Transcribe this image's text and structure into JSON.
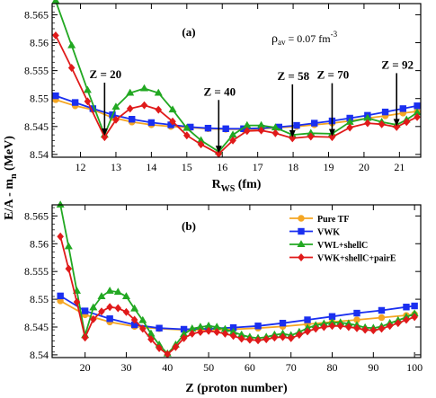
{
  "ylabel": "E/A - m",
  "ylabel_sub": "n",
  "ylabel_unit": "(MeV)",
  "panel_a": {
    "label": "(a)",
    "rho_main": "ρ",
    "rho_sub": "av",
    "rho_value": "= 0.07 fm",
    "rho_sup": "-3",
    "xlabel_main": "R",
    "xlabel_sub": "WS",
    "xlabel_unit": "(fm)"
  },
  "panel_b": {
    "label": "(b)",
    "xlabel": "Z (proton number)"
  },
  "chart_data": [
    {
      "type": "line",
      "panel": "(a)",
      "xlabel": "R_WS (fm)",
      "ylabel": "E/A - m_n (MeV)",
      "xlim": [
        11.2,
        21.6
      ],
      "ylim": [
        8.5395,
        8.567
      ],
      "xticks": [
        "12",
        "13",
        "14",
        "15",
        "16",
        "17",
        "18",
        "19",
        "20",
        "21"
      ],
      "yticks": [
        "8.54",
        "8.545",
        "8.55",
        "8.555",
        "8.56",
        "8.565"
      ],
      "annotations": [
        {
          "text": "Z = 20",
          "x": 12.68,
          "y": 8.5432
        },
        {
          "text": "Z = 40",
          "x": 15.9,
          "y": 8.5401
        },
        {
          "text": "Z = 58",
          "x": 17.98,
          "y": 8.5429
        },
        {
          "text": "Z = 70",
          "x": 19.1,
          "y": 8.5431
        },
        {
          "text": "Z = 92",
          "x": 20.92,
          "y": 8.5449
        }
      ],
      "series": [
        {
          "name": "Pure TF",
          "color": "#f5a623",
          "marker": "circle",
          "x": [
            11.3,
            11.85,
            12.35,
            12.9,
            13.45,
            14.0,
            14.55,
            15.1,
            15.6,
            16.1,
            16.6,
            17.1,
            17.6,
            18.1,
            18.6,
            19.1,
            19.6,
            20.1,
            20.6,
            21.1,
            21.5
          ],
          "y": [
            8.5498,
            8.5487,
            8.548,
            8.5466,
            8.5458,
            8.5453,
            8.545,
            8.5448,
            8.5446,
            8.5445,
            8.5445,
            8.5446,
            8.5448,
            8.545,
            8.5453,
            8.5456,
            8.546,
            8.5465,
            8.5469,
            8.5474,
            8.5477
          ]
        },
        {
          "name": "VWK",
          "color": "#1a2ff0",
          "marker": "square",
          "x": [
            11.3,
            11.85,
            12.35,
            12.9,
            13.45,
            14.0,
            14.55,
            15.1,
            15.6,
            16.1,
            16.6,
            17.1,
            17.6,
            18.1,
            18.6,
            19.1,
            19.6,
            20.1,
            20.6,
            21.1,
            21.5
          ],
          "y": [
            8.5505,
            8.5493,
            8.5482,
            8.5471,
            8.5463,
            8.5457,
            8.5453,
            8.5449,
            8.5447,
            8.5446,
            8.5446,
            8.5447,
            8.5449,
            8.5452,
            8.5456,
            8.546,
            8.5465,
            8.547,
            8.5476,
            8.5482,
            8.5487
          ]
        },
        {
          "name": "VWL+shellC",
          "color": "#22a822",
          "marker": "triangle",
          "x": [
            11.3,
            11.75,
            12.2,
            12.68,
            13.0,
            13.4,
            13.8,
            14.2,
            14.6,
            15.0,
            15.4,
            15.9,
            16.3,
            16.7,
            17.1,
            17.5,
            17.98,
            18.5,
            19.1,
            19.6,
            20.1,
            20.5,
            20.92,
            21.2,
            21.5
          ],
          "y": [
            8.5675,
            8.5595,
            8.5515,
            8.5435,
            8.5485,
            8.551,
            8.5518,
            8.551,
            8.548,
            8.5447,
            8.5425,
            8.5405,
            8.5435,
            8.5452,
            8.5452,
            8.5448,
            8.5435,
            8.5438,
            8.5437,
            8.5458,
            8.5465,
            8.5458,
            8.5453,
            8.5462,
            8.5475
          ]
        },
        {
          "name": "VWK+shellC+pairE",
          "color": "#e01a1a",
          "marker": "diamond",
          "x": [
            11.3,
            11.75,
            12.2,
            12.68,
            13.0,
            13.4,
            13.8,
            14.2,
            14.6,
            15.0,
            15.4,
            15.9,
            16.3,
            16.7,
            17.1,
            17.5,
            17.98,
            18.5,
            19.1,
            19.6,
            20.1,
            20.5,
            20.92,
            21.2,
            21.5
          ],
          "y": [
            8.5613,
            8.5555,
            8.5495,
            8.5431,
            8.5462,
            8.5482,
            8.5488,
            8.548,
            8.5459,
            8.5434,
            8.5418,
            8.5401,
            8.5425,
            8.5442,
            8.5443,
            8.5438,
            8.5429,
            8.5432,
            8.5431,
            8.5448,
            8.5456,
            8.5454,
            8.5449,
            8.5458,
            8.5467
          ]
        }
      ]
    },
    {
      "type": "line",
      "panel": "(b)",
      "xlabel": "Z (proton number)",
      "ylabel": "E/A - m_n (MeV)",
      "xlim": [
        12,
        101.5
      ],
      "ylim": [
        8.5395,
        8.567
      ],
      "xticks": [
        "20",
        "30",
        "40",
        "50",
        "60",
        "70",
        "80",
        "90",
        "100"
      ],
      "yticks": [
        "8.54",
        "8.545",
        "8.55",
        "8.555",
        "8.56",
        "8.565"
      ],
      "legend_position": "top-right",
      "series": [
        {
          "name": "Pure TF",
          "color": "#f5a623",
          "marker": "circle",
          "x": [
            14,
            20,
            26,
            32,
            38,
            44,
            50,
            56,
            62,
            68,
            74,
            80,
            86,
            92,
            98,
            100
          ],
          "y": [
            8.5497,
            8.5472,
            8.5459,
            8.5451,
            8.5447,
            8.5445,
            8.5445,
            8.5446,
            8.5448,
            8.5451,
            8.5455,
            8.5459,
            8.5463,
            8.5467,
            8.5471,
            8.5473
          ]
        },
        {
          "name": "VWK",
          "color": "#1a2ff0",
          "marker": "square",
          "x": [
            14,
            20,
            26,
            32,
            38,
            44,
            50,
            56,
            62,
            68,
            74,
            80,
            86,
            92,
            98,
            100
          ],
          "y": [
            8.5506,
            8.5479,
            8.5465,
            8.5454,
            8.5448,
            8.5446,
            8.5447,
            8.5449,
            8.5452,
            8.5457,
            8.5463,
            8.5469,
            8.5475,
            8.548,
            8.5486,
            8.5488
          ]
        },
        {
          "name": "VWL+shellC",
          "color": "#22a822",
          "marker": "triangle",
          "x": [
            14,
            16,
            18,
            20,
            22,
            24,
            26,
            28,
            30,
            32,
            34,
            36,
            38,
            40,
            42,
            44,
            46,
            48,
            50,
            52,
            54,
            56,
            58,
            60,
            62,
            64,
            66,
            68,
            70,
            72,
            74,
            76,
            78,
            80,
            82,
            84,
            86,
            88,
            90,
            92,
            94,
            96,
            98,
            100
          ],
          "y": [
            8.567,
            8.5595,
            8.5515,
            8.5435,
            8.5485,
            8.5505,
            8.5515,
            8.5513,
            8.5505,
            8.5483,
            8.5462,
            8.5438,
            8.5418,
            8.5402,
            8.5418,
            8.5437,
            8.5447,
            8.545,
            8.5452,
            8.545,
            8.5446,
            8.5441,
            8.5436,
            8.5432,
            8.543,
            8.5432,
            8.5436,
            8.5438,
            8.5435,
            8.5441,
            8.5448,
            8.5453,
            8.5456,
            8.5458,
            8.5458,
            8.5456,
            8.5453,
            8.5449,
            8.5448,
            8.5451,
            8.5457,
            8.5462,
            8.5468,
            8.5474
          ]
        },
        {
          "name": "VWK+shellC+pairE",
          "color": "#e01a1a",
          "marker": "diamond",
          "x": [
            14,
            16,
            18,
            20,
            22,
            24,
            26,
            28,
            30,
            32,
            34,
            36,
            38,
            40,
            42,
            44,
            46,
            48,
            50,
            52,
            54,
            56,
            58,
            60,
            62,
            64,
            66,
            68,
            70,
            72,
            74,
            76,
            78,
            80,
            82,
            84,
            86,
            88,
            90,
            92,
            94,
            96,
            98,
            100
          ],
          "y": [
            8.5613,
            8.5555,
            8.5495,
            8.5431,
            8.5464,
            8.5478,
            8.5486,
            8.5484,
            8.5477,
            8.5463,
            8.5447,
            8.5428,
            8.5412,
            8.5401,
            8.5414,
            8.543,
            8.5438,
            8.5441,
            8.5443,
            8.5441,
            8.5438,
            8.5434,
            8.5429,
            8.5427,
            8.5426,
            8.5428,
            8.5431,
            8.5432,
            8.543,
            8.5436,
            8.5442,
            8.5447,
            8.545,
            8.5452,
            8.5452,
            8.545,
            8.5448,
            8.5445,
            8.5444,
            8.5447,
            8.5452,
            8.5457,
            8.5463,
            8.5468
          ]
        }
      ]
    }
  ]
}
